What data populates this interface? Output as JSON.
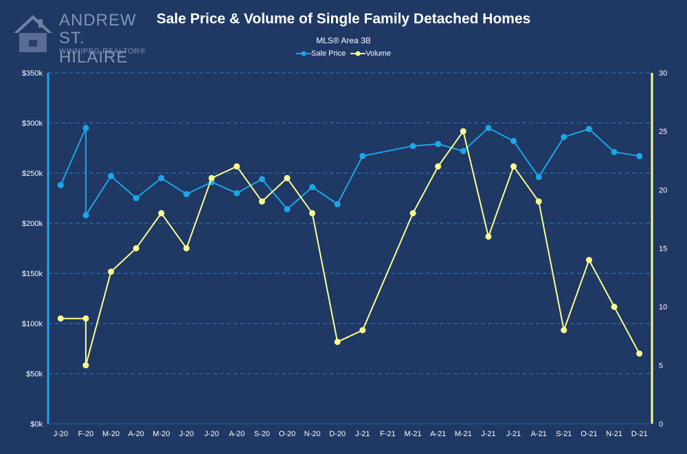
{
  "logo": {
    "line1": "ANDREW",
    "line2": "ST. HILAIRE",
    "line3": "WINNIPEG REALTOR®"
  },
  "colors": {
    "background": "#1f3864",
    "sale_price": "#1aa7e8",
    "volume": "#ffff8c",
    "grid": "#2f7fc4"
  },
  "chart_data": {
    "type": "line",
    "title": "Sale Price & Volume of Single Family Detached Homes",
    "subtitle": "MLS® Area 3B",
    "legend_position": "top-center",
    "grid": true,
    "categories": [
      "J-20",
      "F-20",
      "M-20",
      "A-20",
      "M-20",
      "J-20",
      "J-20",
      "A-20",
      "S-20",
      "O-20",
      "N-20",
      "D-20",
      "J-21",
      "F-21",
      "M-21",
      "A-21",
      "M-21",
      "J-21",
      "J-21",
      "A-21",
      "S-21",
      "O-21",
      "N-21",
      "D-21"
    ],
    "y_left": {
      "min": 0,
      "max": 350000,
      "ticks": [
        "$0k",
        "$50k",
        "$100k",
        "$150k",
        "$200k",
        "$250k",
        "$300k",
        "$350k"
      ]
    },
    "y_right": {
      "min": 0,
      "max": 30,
      "ticks": [
        "0",
        "5",
        "10",
        "15",
        "20",
        "25",
        "30"
      ]
    },
    "series": [
      {
        "name": "Sale Price",
        "axis": "left",
        "points": [
          {
            "i": 0,
            "v": 238000
          },
          {
            "i": 1,
            "v": 295000
          },
          {
            "i": 1,
            "v": 208000
          },
          {
            "i": 2,
            "v": 247000
          },
          {
            "i": 3,
            "v": 225000
          },
          {
            "i": 4,
            "v": 245000
          },
          {
            "i": 5,
            "v": 229000
          },
          {
            "i": 6,
            "v": 241000
          },
          {
            "i": 7,
            "v": 230000
          },
          {
            "i": 8,
            "v": 244000
          },
          {
            "i": 9,
            "v": 214000
          },
          {
            "i": 10,
            "v": 236000
          },
          {
            "i": 11,
            "v": 219000
          },
          {
            "i": 12,
            "v": 267000
          },
          {
            "i": 14,
            "v": 277000
          },
          {
            "i": 15,
            "v": 279000
          },
          {
            "i": 16,
            "v": 272000
          },
          {
            "i": 17,
            "v": 295000
          },
          {
            "i": 18,
            "v": 282000
          },
          {
            "i": 19,
            "v": 246000
          },
          {
            "i": 20,
            "v": 286000
          },
          {
            "i": 21,
            "v": 294000
          },
          {
            "i": 22,
            "v": 271000
          },
          {
            "i": 23,
            "v": 267000
          }
        ]
      },
      {
        "name": "Volume",
        "axis": "right",
        "points": [
          {
            "i": 0,
            "v": 9
          },
          {
            "i": 1,
            "v": 9
          },
          {
            "i": 1,
            "v": 5
          },
          {
            "i": 2,
            "v": 13
          },
          {
            "i": 3,
            "v": 15
          },
          {
            "i": 4,
            "v": 18
          },
          {
            "i": 5,
            "v": 15
          },
          {
            "i": 6,
            "v": 21
          },
          {
            "i": 7,
            "v": 22
          },
          {
            "i": 8,
            "v": 19
          },
          {
            "i": 9,
            "v": 21
          },
          {
            "i": 10,
            "v": 18
          },
          {
            "i": 11,
            "v": 7
          },
          {
            "i": 12,
            "v": 8
          },
          {
            "i": 14,
            "v": 18
          },
          {
            "i": 15,
            "v": 22
          },
          {
            "i": 16,
            "v": 25
          },
          {
            "i": 17,
            "v": 16
          },
          {
            "i": 18,
            "v": 22
          },
          {
            "i": 19,
            "v": 19
          },
          {
            "i": 20,
            "v": 8
          },
          {
            "i": 21,
            "v": 14
          },
          {
            "i": 22,
            "v": 10
          },
          {
            "i": 23,
            "v": 6
          }
        ]
      }
    ]
  }
}
